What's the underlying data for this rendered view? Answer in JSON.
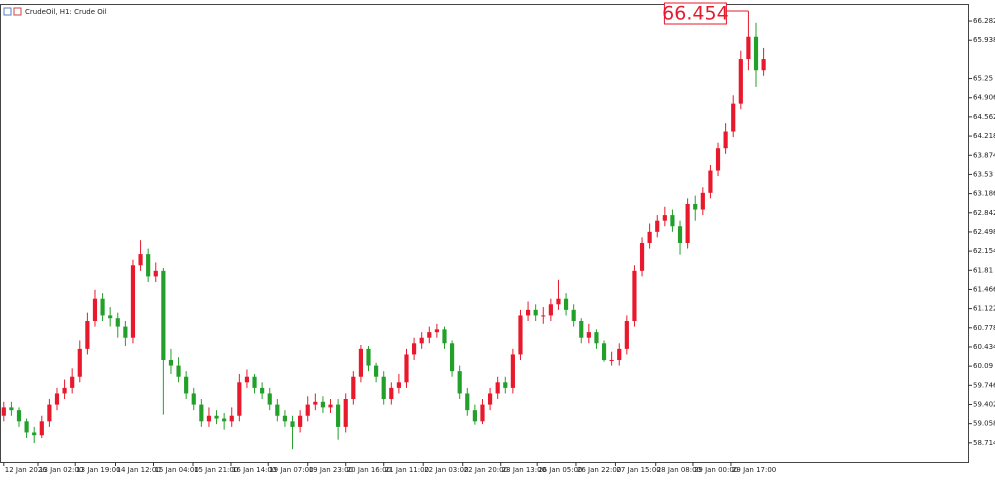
{
  "chart_data": {
    "type": "candlestick",
    "title": "CrudeOil, H1: Crude Oil",
    "annotation": "66.454",
    "up_color": "#e8192c",
    "down_color": "#23a02a",
    "grid": false,
    "ylim": [
      58.37,
      66.57
    ],
    "yticks": [
      66.282,
      65.938,
      65.25,
      64.906,
      64.562,
      64.218,
      63.874,
      63.53,
      63.186,
      62.842,
      62.498,
      62.154,
      61.81,
      61.466,
      61.122,
      60.778,
      60.434,
      60.09,
      59.746,
      59.402,
      59.058,
      58.714
    ],
    "xlim": [
      -0.5,
      126.9
    ],
    "xticks": [
      {
        "value": 0,
        "label": "12 Jan 2026"
      },
      {
        "value": 4.5,
        "label": "13 Jan 02:00"
      },
      {
        "value": 9.4,
        "label": "13 Jan 19:00"
      },
      {
        "value": 14.7,
        "label": "14 Jan 12:00"
      },
      {
        "value": 19.7,
        "label": "15 Jan 04:00"
      },
      {
        "value": 24.9,
        "label": "15 Jan 21:00"
      },
      {
        "value": 29.9,
        "label": "16 Jan 14:00"
      },
      {
        "value": 34.8,
        "label": "19 Jan 07:00"
      },
      {
        "value": 40,
        "label": "19 Jan 23:00"
      },
      {
        "value": 45,
        "label": "20 Jan 16:00"
      },
      {
        "value": 50,
        "label": "21 Jan 11:00"
      },
      {
        "value": 55.2,
        "label": "22 Jan 03:00"
      },
      {
        "value": 60.4,
        "label": "22 Jan 20:00"
      },
      {
        "value": 65.4,
        "label": "23 Jan 13:00"
      },
      {
        "value": 70.2,
        "label": "26 Jan 05:00"
      },
      {
        "value": 75.3,
        "label": "26 Jan 22:00"
      },
      {
        "value": 80.5,
        "label": "27 Jan 15:00"
      },
      {
        "value": 85.8,
        "label": "28 Jan 08:00"
      },
      {
        "value": 90.7,
        "label": "29 Jan 00:00"
      },
      {
        "value": 95.7,
        "label": "29 Jan 17:00"
      }
    ],
    "open": [
      59.2,
      59.35,
      59.3,
      59.1,
      58.9,
      58.85,
      59.1,
      59.4,
      59.6,
      59.7,
      59.9,
      60.4,
      60.9,
      61.3,
      61.0,
      60.95,
      60.8,
      60.6,
      61.9,
      62.1,
      61.7,
      61.8,
      60.2,
      60.1,
      59.9,
      59.6,
      59.4,
      59.1,
      59.2,
      59.15,
      59.1,
      59.2,
      59.8,
      59.9,
      59.7,
      59.6,
      59.4,
      59.2,
      59.1,
      59.0,
      59.2,
      59.4,
      59.45,
      59.35,
      59.4,
      59.0,
      59.5,
      59.9,
      60.4,
      60.1,
      59.9,
      59.5,
      59.7,
      59.8,
      60.3,
      60.5,
      60.6,
      60.7,
      60.75,
      60.5,
      60.0,
      59.6,
      59.3,
      59.1,
      59.4,
      59.6,
      59.8,
      59.7,
      60.3,
      61.0,
      61.1,
      61.0,
      61.0,
      61.2,
      61.3,
      61.1,
      60.9,
      60.6,
      60.7,
      60.5,
      60.2,
      60.2,
      60.4,
      60.9,
      61.8,
      62.3,
      62.5,
      62.7,
      62.8,
      62.6,
      62.3,
      63.0,
      62.9,
      63.2,
      63.6,
      64.0,
      64.3,
      64.8,
      65.6,
      66.0,
      65.4
    ],
    "high": [
      59.45,
      59.45,
      59.35,
      59.15,
      59.0,
      59.2,
      59.5,
      59.7,
      59.85,
      60.05,
      60.55,
      61.05,
      61.46,
      61.4,
      61.15,
      61.05,
      60.9,
      62.0,
      62.35,
      62.2,
      61.95,
      61.85,
      60.4,
      60.25,
      60.0,
      59.7,
      59.5,
      59.35,
      59.3,
      59.25,
      59.35,
      59.95,
      60.03,
      59.95,
      59.8,
      59.7,
      59.5,
      59.3,
      59.2,
      59.3,
      59.55,
      59.6,
      59.55,
      59.5,
      59.5,
      59.6,
      60.0,
      60.47,
      60.45,
      60.15,
      60.0,
      59.8,
      59.95,
      60.4,
      60.6,
      60.7,
      60.8,
      60.85,
      60.8,
      60.55,
      60.1,
      59.7,
      59.4,
      59.5,
      59.7,
      59.9,
      59.9,
      60.4,
      61.1,
      61.25,
      61.2,
      61.15,
      61.3,
      61.64,
      61.4,
      61.2,
      60.95,
      60.85,
      60.75,
      60.55,
      60.35,
      60.5,
      61.0,
      61.9,
      62.4,
      62.65,
      62.8,
      62.95,
      62.9,
      62.7,
      63.1,
      63.15,
      63.3,
      63.7,
      64.1,
      64.45,
      64.95,
      65.75,
      66.454,
      66.25,
      65.8
    ],
    "low": [
      59.1,
      59.2,
      59.0,
      58.8,
      58.71,
      58.8,
      59.0,
      59.3,
      59.5,
      59.6,
      59.8,
      60.3,
      60.8,
      60.9,
      60.8,
      60.6,
      60.45,
      60.5,
      61.8,
      61.6,
      61.6,
      59.22,
      59.95,
      59.8,
      59.5,
      59.3,
      59.0,
      59.0,
      59.05,
      58.95,
      59.0,
      59.1,
      59.7,
      59.6,
      59.5,
      59.3,
      59.1,
      59.0,
      58.6,
      58.9,
      59.1,
      59.3,
      59.25,
      59.25,
      58.77,
      58.9,
      59.4,
      59.8,
      60.0,
      59.8,
      59.4,
      59.4,
      59.6,
      59.7,
      60.2,
      60.4,
      60.5,
      60.6,
      60.4,
      59.9,
      59.5,
      59.2,
      59.04,
      59.05,
      59.3,
      59.5,
      59.6,
      59.6,
      60.2,
      60.9,
      60.9,
      60.85,
      60.9,
      61.1,
      61.0,
      60.8,
      60.5,
      60.5,
      60.4,
      60.17,
      60.1,
      60.1,
      60.3,
      60.8,
      61.7,
      62.2,
      62.4,
      62.6,
      62.5,
      62.09,
      62.2,
      62.7,
      62.8,
      63.1,
      63.5,
      63.9,
      64.2,
      64.7,
      65.4,
      65.1,
      65.3
    ],
    "close": [
      59.35,
      59.3,
      59.1,
      58.9,
      58.85,
      59.1,
      59.4,
      59.6,
      59.7,
      59.9,
      60.4,
      60.9,
      61.3,
      61.0,
      60.95,
      60.8,
      60.6,
      61.9,
      62.1,
      61.7,
      61.8,
      60.2,
      60.1,
      59.9,
      59.6,
      59.4,
      59.1,
      59.2,
      59.15,
      59.1,
      59.2,
      59.8,
      59.9,
      59.7,
      59.6,
      59.4,
      59.2,
      59.1,
      59.0,
      59.2,
      59.4,
      59.45,
      59.35,
      59.4,
      59.0,
      59.5,
      59.9,
      60.4,
      60.1,
      59.9,
      59.5,
      59.7,
      59.8,
      60.3,
      60.5,
      60.6,
      60.7,
      60.75,
      60.5,
      60.0,
      59.6,
      59.3,
      59.1,
      59.4,
      59.6,
      59.8,
      59.7,
      60.3,
      61.0,
      61.1,
      61.0,
      61.0,
      61.2,
      61.3,
      61.1,
      60.9,
      60.6,
      60.7,
      60.5,
      60.2,
      60.2,
      60.4,
      60.9,
      61.8,
      62.3,
      62.5,
      62.7,
      62.8,
      62.6,
      62.3,
      63.0,
      62.9,
      63.2,
      63.6,
      64.0,
      64.3,
      64.8,
      65.6,
      66.0,
      65.4,
      65.6
    ]
  }
}
